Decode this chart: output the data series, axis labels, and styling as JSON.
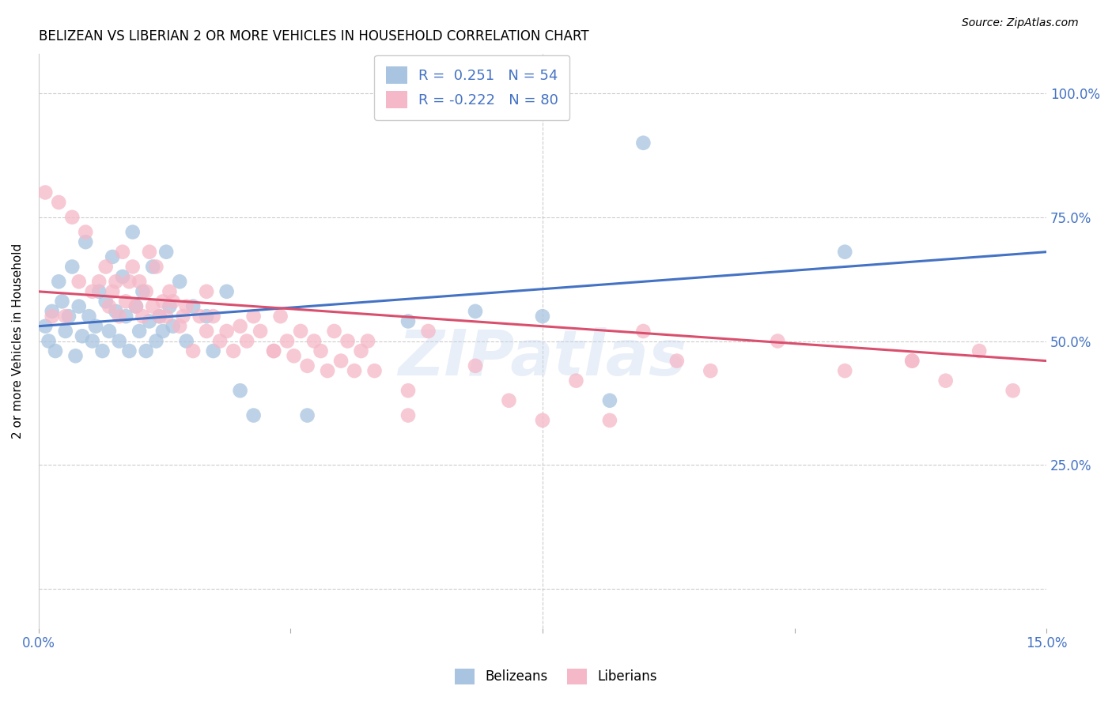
{
  "title": "BELIZEAN VS LIBERIAN 2 OR MORE VEHICLES IN HOUSEHOLD CORRELATION CHART",
  "source": "Source: ZipAtlas.com",
  "ylabel": "2 or more Vehicles in Household",
  "xlim": [
    0.0,
    15.0
  ],
  "ylim": [
    -8.0,
    108.0
  ],
  "ytick_vals": [
    0,
    25,
    50,
    75,
    100
  ],
  "ytick_labels": [
    "",
    "25.0%",
    "50.0%",
    "75.0%",
    "100.0%"
  ],
  "xtick_positions": [
    0.0,
    3.75,
    7.5,
    11.25,
    15.0
  ],
  "xtick_labels": [
    "0.0%",
    "",
    "",
    "",
    "15.0%"
  ],
  "belizean_R": "0.251",
  "belizean_N": "54",
  "liberian_R": "-0.222",
  "liberian_N": "80",
  "blue_color": "#a8c4e0",
  "pink_color": "#f5b8c8",
  "blue_line_color": "#4472c4",
  "pink_line_color": "#d94f6e",
  "blue_text_color": "#4472c4",
  "watermark": "ZIPatlas",
  "belizean_x": [
    0.1,
    0.15,
    0.2,
    0.25,
    0.3,
    0.35,
    0.4,
    0.45,
    0.5,
    0.55,
    0.6,
    0.65,
    0.7,
    0.75,
    0.8,
    0.85,
    0.9,
    0.95,
    1.0,
    1.05,
    1.1,
    1.15,
    1.2,
    1.25,
    1.3,
    1.35,
    1.4,
    1.45,
    1.5,
    1.55,
    1.6,
    1.65,
    1.7,
    1.75,
    1.8,
    1.85,
    1.9,
    1.95,
    2.0,
    2.1,
    2.2,
    2.3,
    2.5,
    2.6,
    2.8,
    3.0,
    3.2,
    4.0,
    5.5,
    6.5,
    7.5,
    8.5,
    9.0,
    12.0
  ],
  "belizean_y": [
    53,
    50,
    56,
    48,
    62,
    58,
    52,
    55,
    65,
    47,
    57,
    51,
    70,
    55,
    50,
    53,
    60,
    48,
    58,
    52,
    67,
    56,
    50,
    63,
    55,
    48,
    72,
    57,
    52,
    60,
    48,
    54,
    65,
    50,
    55,
    52,
    68,
    57,
    53,
    62,
    50,
    57,
    55,
    48,
    60,
    40,
    35,
    35,
    54,
    56,
    55,
    38,
    90,
    68
  ],
  "liberian_x": [
    0.1,
    0.2,
    0.3,
    0.4,
    0.5,
    0.6,
    0.7,
    0.8,
    0.9,
    1.0,
    1.05,
    1.1,
    1.15,
    1.2,
    1.25,
    1.3,
    1.35,
    1.4,
    1.45,
    1.5,
    1.55,
    1.6,
    1.65,
    1.7,
    1.75,
    1.8,
    1.85,
    1.9,
    1.95,
    2.0,
    2.1,
    2.15,
    2.2,
    2.3,
    2.4,
    2.5,
    2.6,
    2.7,
    2.8,
    2.9,
    3.0,
    3.1,
    3.2,
    3.3,
    3.5,
    3.6,
    3.7,
    3.8,
    3.9,
    4.0,
    4.1,
    4.2,
    4.3,
    4.4,
    4.5,
    4.6,
    4.7,
    4.8,
    4.9,
    5.0,
    5.5,
    5.8,
    6.5,
    7.0,
    7.5,
    8.0,
    8.5,
    9.0,
    9.5,
    10.0,
    11.0,
    12.0,
    13.0,
    13.5,
    14.0,
    14.5,
    2.5,
    3.5,
    5.5,
    13.0
  ],
  "liberian_y": [
    80,
    55,
    78,
    55,
    75,
    62,
    72,
    60,
    62,
    65,
    57,
    60,
    62,
    55,
    68,
    58,
    62,
    65,
    57,
    62,
    55,
    60,
    68,
    57,
    65,
    55,
    58,
    55,
    60,
    58,
    53,
    55,
    57,
    48,
    55,
    52,
    55,
    50,
    52,
    48,
    53,
    50,
    55,
    52,
    48,
    55,
    50,
    47,
    52,
    45,
    50,
    48,
    44,
    52,
    46,
    50,
    44,
    48,
    50,
    44,
    40,
    52,
    45,
    38,
    34,
    42,
    34,
    52,
    46,
    44,
    50,
    44,
    46,
    42,
    48,
    40,
    60,
    48,
    35,
    46
  ]
}
